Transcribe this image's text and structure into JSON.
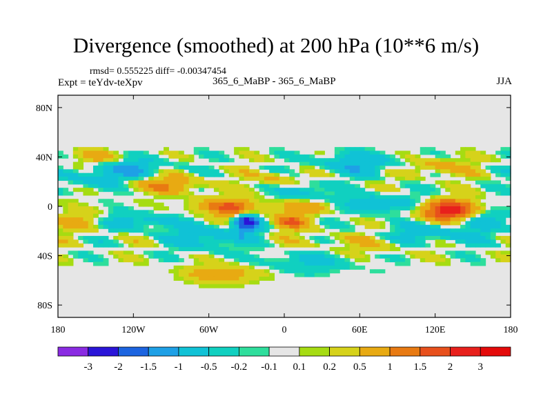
{
  "chart_data": {
    "type": "heatmap",
    "title": "Divergence (smoothed) at 200 hPa (10**6 m/s)",
    "stats": "rmsd= 0.555225 diff= -0.00347454",
    "expt": "Expt = teYdv-teXpv",
    "cases": "365_6_MaBP - 365_6_MaBP",
    "season": "JJA",
    "xlim": [
      -180,
      180
    ],
    "ylim": [
      -90,
      90
    ],
    "x_ticks": [
      {
        "value": -180,
        "label": "180"
      },
      {
        "value": -120,
        "label": "120W"
      },
      {
        "value": -60,
        "label": "60W"
      },
      {
        "value": 0,
        "label": "0"
      },
      {
        "value": 60,
        "label": "60E"
      },
      {
        "value": 120,
        "label": "120E"
      },
      {
        "value": 180,
        "label": "180"
      }
    ],
    "y_ticks": [
      {
        "value": 80,
        "label": "80N"
      },
      {
        "value": 40,
        "label": "40N"
      },
      {
        "value": 0,
        "label": "0"
      },
      {
        "value": -40,
        "label": "40S"
      },
      {
        "value": -80,
        "label": "80S"
      }
    ],
    "contour_levels": [
      "-3",
      "-2",
      "-1.5",
      "-1",
      "-0.5",
      "-0.2",
      "-0.1",
      "0.1",
      "0.2",
      "0.5",
      "1",
      "1.5",
      "2",
      "3"
    ],
    "colors": [
      "#8a2be2",
      "#2a15d8",
      "#1c64e0",
      "#1ea0e6",
      "#10c2d6",
      "#10d0c0",
      "#2ede9c",
      "#e6e6e6",
      "#a6dc12",
      "#d6d21a",
      "#e8aa12",
      "#e87a12",
      "#e8501c",
      "#e8201c",
      "#e40a0a"
    ],
    "features": [
      {
        "lon": -30,
        "lat": -12,
        "a": -2.6,
        "slon": 8,
        "slat": 6
      },
      {
        "lon": -35,
        "lat": -5,
        "a": 1.2,
        "slon": 12,
        "slat": 6
      },
      {
        "lon": -50,
        "lat": 0,
        "a": 1.0,
        "slon": 18,
        "slat": 5
      },
      {
        "lon": 130,
        "lat": -3,
        "a": 2.4,
        "slon": 16,
        "slat": 6
      },
      {
        "lon": 20,
        "lat": 0,
        "a": 0.9,
        "slon": 18,
        "slat": 4
      },
      {
        "lon": 15,
        "lat": 12,
        "a": -0.8,
        "slon": 14,
        "slat": 5
      },
      {
        "lon": 75,
        "lat": 2,
        "a": -0.9,
        "slon": 30,
        "slat": 5
      },
      {
        "lon": 5,
        "lat": -12,
        "a": 1.3,
        "slon": 10,
        "slat": 5
      },
      {
        "lon": -120,
        "lat": -12,
        "a": -0.8,
        "slon": 25,
        "slat": 5
      },
      {
        "lon": -60,
        "lat": -25,
        "a": -0.9,
        "slon": 20,
        "slat": 7
      },
      {
        "lon": 120,
        "lat": -22,
        "a": -0.8,
        "slon": 30,
        "slat": 6
      },
      {
        "lon": 60,
        "lat": -30,
        "a": 0.4,
        "slon": 35,
        "slat": 6
      },
      {
        "lon": -150,
        "lat": 22,
        "a": -0.8,
        "slon": 15,
        "slat": 6
      },
      {
        "lon": -120,
        "lat": 30,
        "a": -0.9,
        "slon": 20,
        "slat": 6
      },
      {
        "lon": 60,
        "lat": 35,
        "a": -0.9,
        "slon": 25,
        "slat": 6
      },
      {
        "lon": -150,
        "lat": 40,
        "a": 0.7,
        "slon": 15,
        "slat": 4
      },
      {
        "lon": 120,
        "lat": 32,
        "a": 0.8,
        "slon": 18,
        "slat": 5
      },
      {
        "lon": -50,
        "lat": -55,
        "a": 0.9,
        "slon": 20,
        "slat": 5
      },
      {
        "lon": 20,
        "lat": -45,
        "a": -0.6,
        "slon": 25,
        "slat": 6
      },
      {
        "lon": 160,
        "lat": -10,
        "a": -0.7,
        "slon": 14,
        "slat": 5
      },
      {
        "lon": -160,
        "lat": -12,
        "a": 0.8,
        "slon": 15,
        "slat": 6
      },
      {
        "lon": -95,
        "lat": 18,
        "a": 1.0,
        "slon": 22,
        "slat": 5
      },
      {
        "lon": -5,
        "lat": 22,
        "a": 0.6,
        "slon": 12,
        "slat": 5
      }
    ]
  }
}
